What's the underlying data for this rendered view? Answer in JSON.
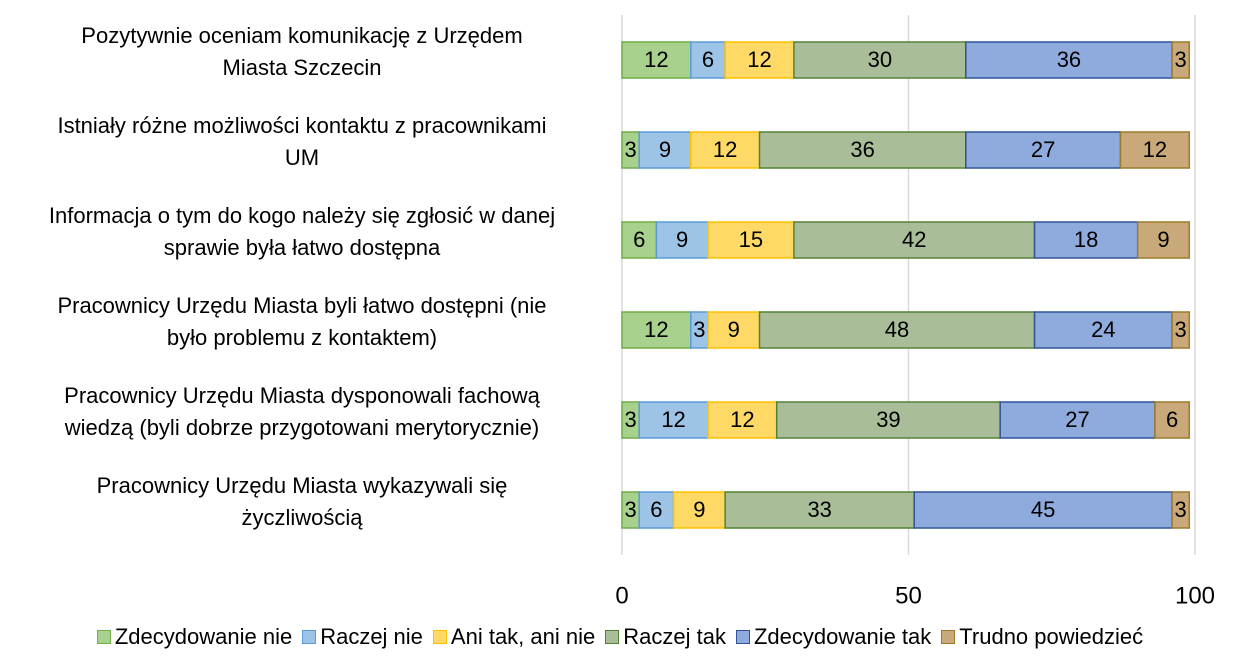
{
  "chart_data": {
    "type": "stacked_bar_horizontal",
    "categories": [
      "Pozytywnie oceniam komunikację z Urzędem\nMiasta Szczecin",
      "Istniały różne możliwości kontaktu z pracownikami\nUM",
      "Informacja o tym do kogo należy się zgłosić w danej\nsprawie była łatwo dostępna",
      "Pracownicy Urzędu Miasta byli łatwo dostępni (nie\nbyło problemu z kontaktem)",
      "Pracownicy Urzędu Miasta dysponowali fachową\nwiedzą (byli dobrze przygotowani merytorycznie)",
      "Pracownicy Urzędu Miasta wykazywali się\nżyczliwością"
    ],
    "series": [
      {
        "name": "Zdecydowanie nie",
        "color": "#a9d18e",
        "stroke": "#70ad47",
        "values": [
          12,
          3,
          6,
          12,
          3,
          3
        ]
      },
      {
        "name": "Raczej nie",
        "color": "#9dc3e6",
        "stroke": "#5b9bd5",
        "values": [
          6,
          9,
          9,
          3,
          12,
          6
        ]
      },
      {
        "name": "Ani tak, ani nie",
        "color": "#ffd966",
        "stroke": "#ffc000",
        "values": [
          12,
          12,
          15,
          9,
          12,
          9
        ]
      },
      {
        "name": "Raczej tak",
        "color": "#a9bd98",
        "stroke": "#548235",
        "values": [
          30,
          36,
          42,
          48,
          39,
          33
        ]
      },
      {
        "name": "Zdecydowanie tak",
        "color": "#8faadc",
        "stroke": "#2f5597",
        "values": [
          36,
          27,
          18,
          24,
          27,
          45
        ]
      },
      {
        "name": "Trudno powiedzieć",
        "color": "#c9a97a",
        "stroke": "#9c7a2b",
        "values": [
          3,
          12,
          9,
          3,
          6,
          3
        ]
      }
    ],
    "xlim": [
      0,
      100
    ],
    "xticks": [
      0,
      50,
      100
    ],
    "grid": true,
    "legend": "bottom"
  }
}
